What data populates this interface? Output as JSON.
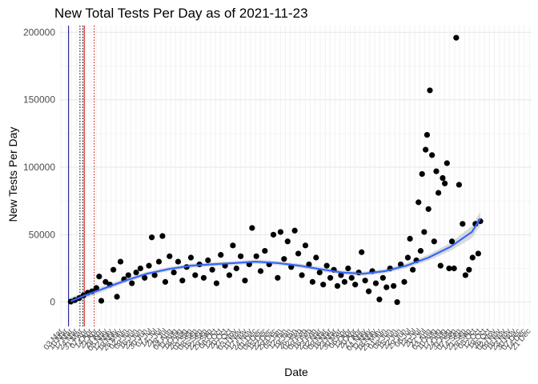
{
  "chart_data": {
    "type": "scatter",
    "title": "New Total Tests Per Day as of 2021-11-23",
    "xlabel": "Date",
    "ylabel": "New Tests Per Day",
    "x_type": "date",
    "xlim": [
      "2020-03-01",
      "2021-12-24"
    ],
    "ylim": [
      -18000,
      205000
    ],
    "y_ticks": [
      0,
      50000,
      100000,
      150000,
      200000
    ],
    "grid": true,
    "legend": "none",
    "x_tick_start": "2020-03-03",
    "x_tick_step_days": 7,
    "x_tick_labels": [
      "03 Mar",
      "10 Mar",
      "17 Mar",
      "24 Mar",
      "31 Mar",
      "07 Apr",
      "14 Apr",
      "21 Apr",
      "28 Apr",
      "05 May",
      "12 May",
      "19 May",
      "26 May",
      "02 Jun",
      "09 Jun",
      "16 Jun",
      "23 Jun",
      "30 Jun",
      "07 Jul",
      "14 Jul",
      "21 Jul",
      "28 Jul",
      "04 Aug",
      "11 Aug",
      "18 Aug",
      "25 Aug",
      "01 Sep",
      "08 Sep",
      "15 Sep",
      "22 Sep",
      "29 Sep",
      "06 Oct",
      "13 Oct",
      "20 Oct",
      "27 Oct",
      "03 Nov",
      "10 Nov",
      "17 Nov",
      "24 Nov",
      "01 Dec",
      "08 Dec",
      "15 Dec",
      "22 Dec",
      "29 Dec",
      "05 Jan",
      "12 Jan",
      "19 Jan",
      "26 Jan",
      "02 Feb",
      "09 Feb",
      "16 Feb",
      "23 Feb",
      "02 Mar",
      "09 Mar",
      "16 Mar",
      "23 Mar",
      "30 Mar",
      "06 Apr",
      "13 Apr",
      "20 Apr",
      "27 Apr",
      "04 May",
      "11 May",
      "18 May",
      "25 May",
      "01 Jun",
      "08 Jun",
      "15 Jun",
      "22 Jun",
      "29 Jun",
      "06 Jul",
      "13 Jul",
      "20 Jul",
      "27 Jul",
      "03 Aug",
      "10 Aug",
      "17 Aug",
      "24 Aug",
      "31 Aug",
      "07 Sep",
      "14 Sep",
      "21 Sep",
      "28 Sep",
      "05 Oct",
      "12 Oct",
      "19 Oct",
      "26 Oct",
      "02 Nov",
      "09 Nov",
      "16 Nov",
      "23 Nov",
      "30 Nov",
      "07 Dec",
      "14 Dec",
      "21 Dec"
    ],
    "vertical_lines": [
      {
        "x": "2020-03-13",
        "color": "#00008b",
        "style": "solid"
      },
      {
        "x": "2020-03-29",
        "color": "#000000",
        "style": "dotted"
      },
      {
        "x": "2020-04-02",
        "color": "#000000",
        "style": "dotted"
      },
      {
        "x": "2020-04-04",
        "color": "#cc0000",
        "style": "solid"
      },
      {
        "x": "2020-04-18",
        "color": "#cc0000",
        "style": "dotted"
      }
    ],
    "series": [
      {
        "type": "scatter",
        "color": "#000000",
        "points": [
          [
            "2020-03-16",
            400
          ],
          [
            "2020-03-22",
            1500
          ],
          [
            "2020-03-28",
            3000
          ],
          [
            "2020-04-03",
            5000
          ],
          [
            "2020-04-09",
            7000
          ],
          [
            "2020-04-15",
            8000
          ],
          [
            "2020-04-21",
            10500
          ],
          [
            "2020-04-25",
            19000
          ],
          [
            "2020-04-28",
            1000
          ],
          [
            "2020-05-04",
            15000
          ],
          [
            "2020-05-10",
            13000
          ],
          [
            "2020-05-15",
            24000
          ],
          [
            "2020-05-20",
            4000
          ],
          [
            "2020-05-25",
            30000
          ],
          [
            "2020-05-30",
            17000
          ],
          [
            "2020-06-05",
            20000
          ],
          [
            "2020-06-10",
            14000
          ],
          [
            "2020-06-16",
            22000
          ],
          [
            "2020-06-22",
            25000
          ],
          [
            "2020-06-28",
            18000
          ],
          [
            "2020-07-04",
            27000
          ],
          [
            "2020-07-08",
            48000
          ],
          [
            "2020-07-12",
            20000
          ],
          [
            "2020-07-18",
            30000
          ],
          [
            "2020-07-23",
            49000
          ],
          [
            "2020-07-27",
            15000
          ],
          [
            "2020-08-02",
            34000
          ],
          [
            "2020-08-08",
            22000
          ],
          [
            "2020-08-14",
            30000
          ],
          [
            "2020-08-20",
            16000
          ],
          [
            "2020-08-26",
            26000
          ],
          [
            "2020-09-01",
            33000
          ],
          [
            "2020-09-07",
            20000
          ],
          [
            "2020-09-13",
            28000
          ],
          [
            "2020-09-19",
            18000
          ],
          [
            "2020-09-25",
            31000
          ],
          [
            "2020-10-01",
            24000
          ],
          [
            "2020-10-07",
            14000
          ],
          [
            "2020-10-13",
            35000
          ],
          [
            "2020-10-19",
            27000
          ],
          [
            "2020-10-25",
            20000
          ],
          [
            "2020-10-30",
            42000
          ],
          [
            "2020-11-04",
            25000
          ],
          [
            "2020-11-10",
            34000
          ],
          [
            "2020-11-16",
            16000
          ],
          [
            "2020-11-22",
            28000
          ],
          [
            "2020-11-26",
            55000
          ],
          [
            "2020-12-02",
            34000
          ],
          [
            "2020-12-08",
            23000
          ],
          [
            "2020-12-14",
            38000
          ],
          [
            "2020-12-20",
            28000
          ],
          [
            "2020-12-26",
            50000
          ],
          [
            "2021-01-01",
            18000
          ],
          [
            "2021-01-05",
            52000
          ],
          [
            "2021-01-10",
            32000
          ],
          [
            "2021-01-15",
            45000
          ],
          [
            "2021-01-20",
            26000
          ],
          [
            "2021-01-25",
            53000
          ],
          [
            "2021-01-30",
            36000
          ],
          [
            "2021-02-04",
            20000
          ],
          [
            "2021-02-09",
            42000
          ],
          [
            "2021-02-14",
            28000
          ],
          [
            "2021-02-19",
            15000
          ],
          [
            "2021-02-24",
            33000
          ],
          [
            "2021-03-01",
            22000
          ],
          [
            "2021-03-06",
            13000
          ],
          [
            "2021-03-11",
            27000
          ],
          [
            "2021-03-16",
            18000
          ],
          [
            "2021-03-21",
            24000
          ],
          [
            "2021-03-26",
            12000
          ],
          [
            "2021-03-31",
            20000
          ],
          [
            "2021-04-05",
            15000
          ],
          [
            "2021-04-10",
            25000
          ],
          [
            "2021-04-15",
            18000
          ],
          [
            "2021-04-20",
            13000
          ],
          [
            "2021-04-25",
            22000
          ],
          [
            "2021-04-29",
            37000
          ],
          [
            "2021-05-04",
            16000
          ],
          [
            "2021-05-09",
            8000
          ],
          [
            "2021-05-14",
            23000
          ],
          [
            "2021-05-19",
            14000
          ],
          [
            "2021-05-24",
            2000
          ],
          [
            "2021-05-29",
            18000
          ],
          [
            "2021-06-03",
            11000
          ],
          [
            "2021-06-08",
            25000
          ],
          [
            "2021-06-13",
            12000
          ],
          [
            "2021-06-18",
            0
          ],
          [
            "2021-06-23",
            28000
          ],
          [
            "2021-06-28",
            15000
          ],
          [
            "2021-07-03",
            33000
          ],
          [
            "2021-07-06",
            47000
          ],
          [
            "2021-07-10",
            24000
          ],
          [
            "2021-07-15",
            31000
          ],
          [
            "2021-07-18",
            74000
          ],
          [
            "2021-07-21",
            38000
          ],
          [
            "2021-07-23",
            95000
          ],
          [
            "2021-07-26",
            52000
          ],
          [
            "2021-07-28",
            113000
          ],
          [
            "2021-07-30",
            124000
          ],
          [
            "2021-08-01",
            69000
          ],
          [
            "2021-08-03",
            157000
          ],
          [
            "2021-08-06",
            109000
          ],
          [
            "2021-08-09",
            45000
          ],
          [
            "2021-08-12",
            97000
          ],
          [
            "2021-08-15",
            81000
          ],
          [
            "2021-08-18",
            27000
          ],
          [
            "2021-08-21",
            92000
          ],
          [
            "2021-08-24",
            88000
          ],
          [
            "2021-08-27",
            103000
          ],
          [
            "2021-08-30",
            25000
          ],
          [
            "2021-09-03",
            45000
          ],
          [
            "2021-09-06",
            25000
          ],
          [
            "2021-09-09",
            196000
          ],
          [
            "2021-09-13",
            87000
          ],
          [
            "2021-09-18",
            58000
          ],
          [
            "2021-09-22",
            20000
          ],
          [
            "2021-09-27",
            24000
          ],
          [
            "2021-10-02",
            33000
          ],
          [
            "2021-10-06",
            58000
          ],
          [
            "2021-10-10",
            36000
          ],
          [
            "2021-10-13",
            60000
          ]
        ]
      },
      {
        "type": "smooth",
        "color": "#3366ff",
        "band_color": "#bdbdbd",
        "points": [
          [
            "2020-03-16",
            500,
            3000
          ],
          [
            "2020-04-05",
            5000,
            2500
          ],
          [
            "2020-05-01",
            10000,
            2000
          ],
          [
            "2020-06-01",
            16000,
            1600
          ],
          [
            "2020-07-01",
            21000,
            1500
          ],
          [
            "2020-08-01",
            24500,
            1500
          ],
          [
            "2020-09-01",
            27000,
            1500
          ],
          [
            "2020-10-01",
            28000,
            1500
          ],
          [
            "2020-11-01",
            29000,
            1500
          ],
          [
            "2020-12-01",
            30000,
            1500
          ],
          [
            "2021-01-01",
            29000,
            1500
          ],
          [
            "2021-02-01",
            27000,
            1500
          ],
          [
            "2021-03-01",
            24500,
            1500
          ],
          [
            "2021-04-01",
            22000,
            1500
          ],
          [
            "2021-05-01",
            21000,
            1500
          ],
          [
            "2021-06-01",
            23000,
            1600
          ],
          [
            "2021-07-01",
            27000,
            1800
          ],
          [
            "2021-08-01",
            33000,
            2200
          ],
          [
            "2021-09-01",
            41000,
            3000
          ],
          [
            "2021-10-01",
            52000,
            4500
          ],
          [
            "2021-10-13",
            62000,
            5000
          ]
        ]
      }
    ]
  }
}
